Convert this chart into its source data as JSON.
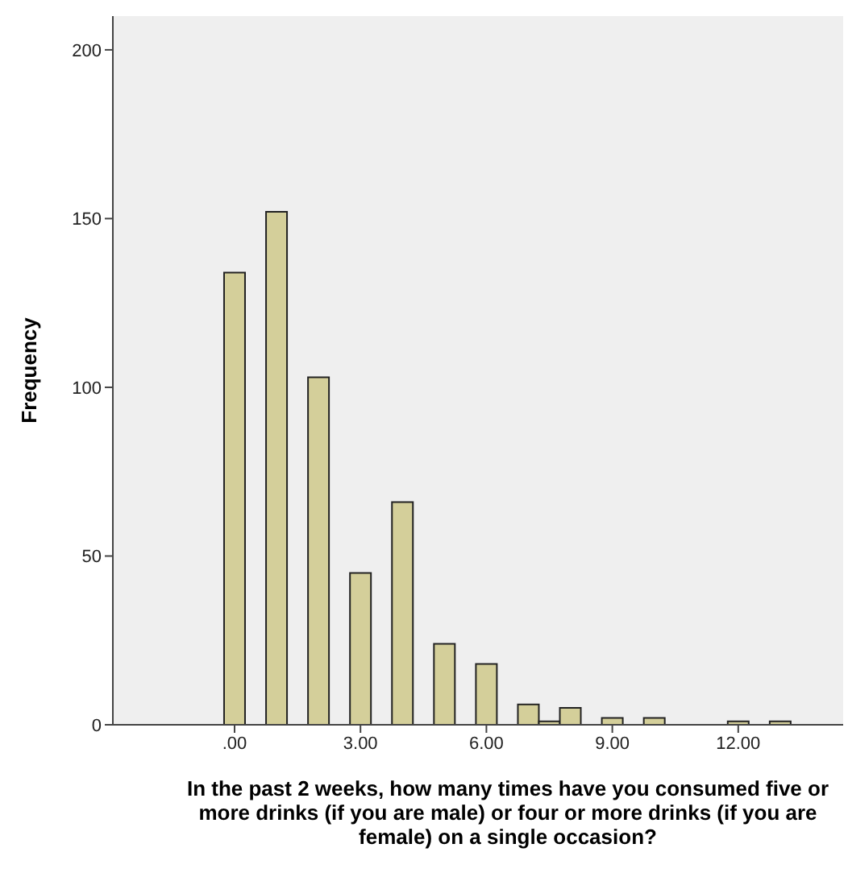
{
  "chart_data": {
    "type": "bar",
    "xlabel": "In the past 2 weeks, how many times have you consumed five or more drinks (if you are male) or four or more drinks (if you are female) on a single occasion?",
    "ylabel": "Frequency",
    "x": [
      0,
      1,
      2,
      3,
      4,
      5,
      6,
      7,
      7.5,
      8,
      9,
      10,
      12,
      13
    ],
    "values": [
      134,
      152,
      103,
      45,
      66,
      24,
      18,
      6,
      1,
      5,
      2,
      2,
      1,
      1
    ],
    "color": "#d4cf9a",
    "xlim": [
      -2.9,
      14.5
    ],
    "xticks": [
      {
        "value": 0,
        "label": ".00"
      },
      {
        "value": 3,
        "label": "3.00"
      },
      {
        "value": 6,
        "label": "6.00"
      },
      {
        "value": 9,
        "label": "9.00"
      },
      {
        "value": 12,
        "label": "12.00"
      }
    ],
    "ylim": [
      0,
      210
    ],
    "yticks": [
      0,
      50,
      100,
      150,
      200
    ]
  }
}
